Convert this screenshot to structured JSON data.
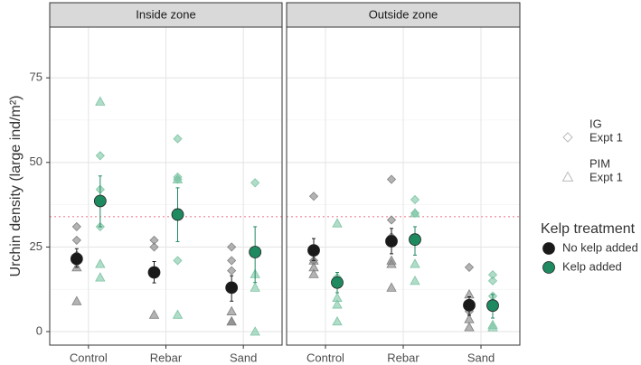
{
  "chart_data": {
    "type": "dot",
    "y_label": "Urchin density (large ind/m²)",
    "categories": [
      "Control",
      "Rebar",
      "Sand"
    ],
    "ylim": [
      -4,
      90
    ],
    "yticks": [
      0,
      25,
      50,
      75
    ],
    "reference_line": 34,
    "grid": true,
    "legend_title": "Kelp treatment",
    "shape_legend": [
      [
        "IG",
        "Expt 1"
      ],
      [
        "PIM",
        "Expt 1"
      ]
    ],
    "series": [
      {
        "name": "No kelp added",
        "color": "#1a1a1a",
        "point_color": "#808080"
      },
      {
        "name": "Kelp added",
        "color": "#1f8a60",
        "point_color": "#7cc4a4"
      }
    ],
    "facets": [
      {
        "title": "Inside zone",
        "series": [
          {
            "mean": [
              21.5,
              17.5,
              13
            ],
            "error_low": [
              19,
              14.4,
              9
            ],
            "error_high": [
              24.5,
              20.7,
              16.5
            ],
            "IG": [
              [
                31,
                27,
                22.6
              ],
              [
                27,
                25
              ],
              [
                25,
                21,
                18
              ]
            ],
            "PIM": [
              [
                19,
                9
              ],
              [
                18,
                5
              ],
              [
                6,
                3,
                3
              ]
            ]
          },
          {
            "mean": [
              38.6,
              34.6,
              23.5
            ],
            "error_low": [
              31,
              26.6,
              14.5
            ],
            "error_high": [
              46,
              42.5,
              31
            ],
            "IG": [
              [
                52,
                42,
                31
              ],
              [
                57,
                45.7,
                45,
                21
              ],
              [
                44
              ]
            ],
            "PIM": [
              [
                68,
                20,
                16
              ],
              [
                45,
                5
              ],
              [
                17,
                13,
                0
              ]
            ]
          }
        ]
      },
      {
        "title": "Outside zone",
        "series": [
          {
            "mean": [
              24,
              26.7,
              7.8
            ],
            "error_low": [
              21,
              23,
              4.8
            ],
            "error_high": [
              27.5,
              30.5,
              10.3
            ],
            "IG": [
              [
                40,
                24,
                21
              ],
              [
                45,
                33,
                28
              ],
              [
                19,
                6
              ]
            ],
            "PIM": [
              [
                21,
                19,
                17
              ],
              [
                21,
                20,
                13
              ],
              [
                11,
                3.7,
                1.3
              ]
            ]
          },
          {
            "mean": [
              14.5,
              27.2,
              7.7
            ],
            "error_low": [
              11.5,
              22.6,
              4
            ],
            "error_high": [
              17.5,
              31,
              11
            ],
            "IG": [
              [
                16,
                14.5
              ],
              [
                39,
                35
              ],
              [
                16.8,
                15,
                10.5
              ]
            ],
            "PIM": [
              [
                32,
                10,
                8,
                3
              ],
              [
                35,
                20,
                15
              ],
              [
                8.5,
                2,
                1.3
              ]
            ]
          }
        ]
      }
    ]
  }
}
